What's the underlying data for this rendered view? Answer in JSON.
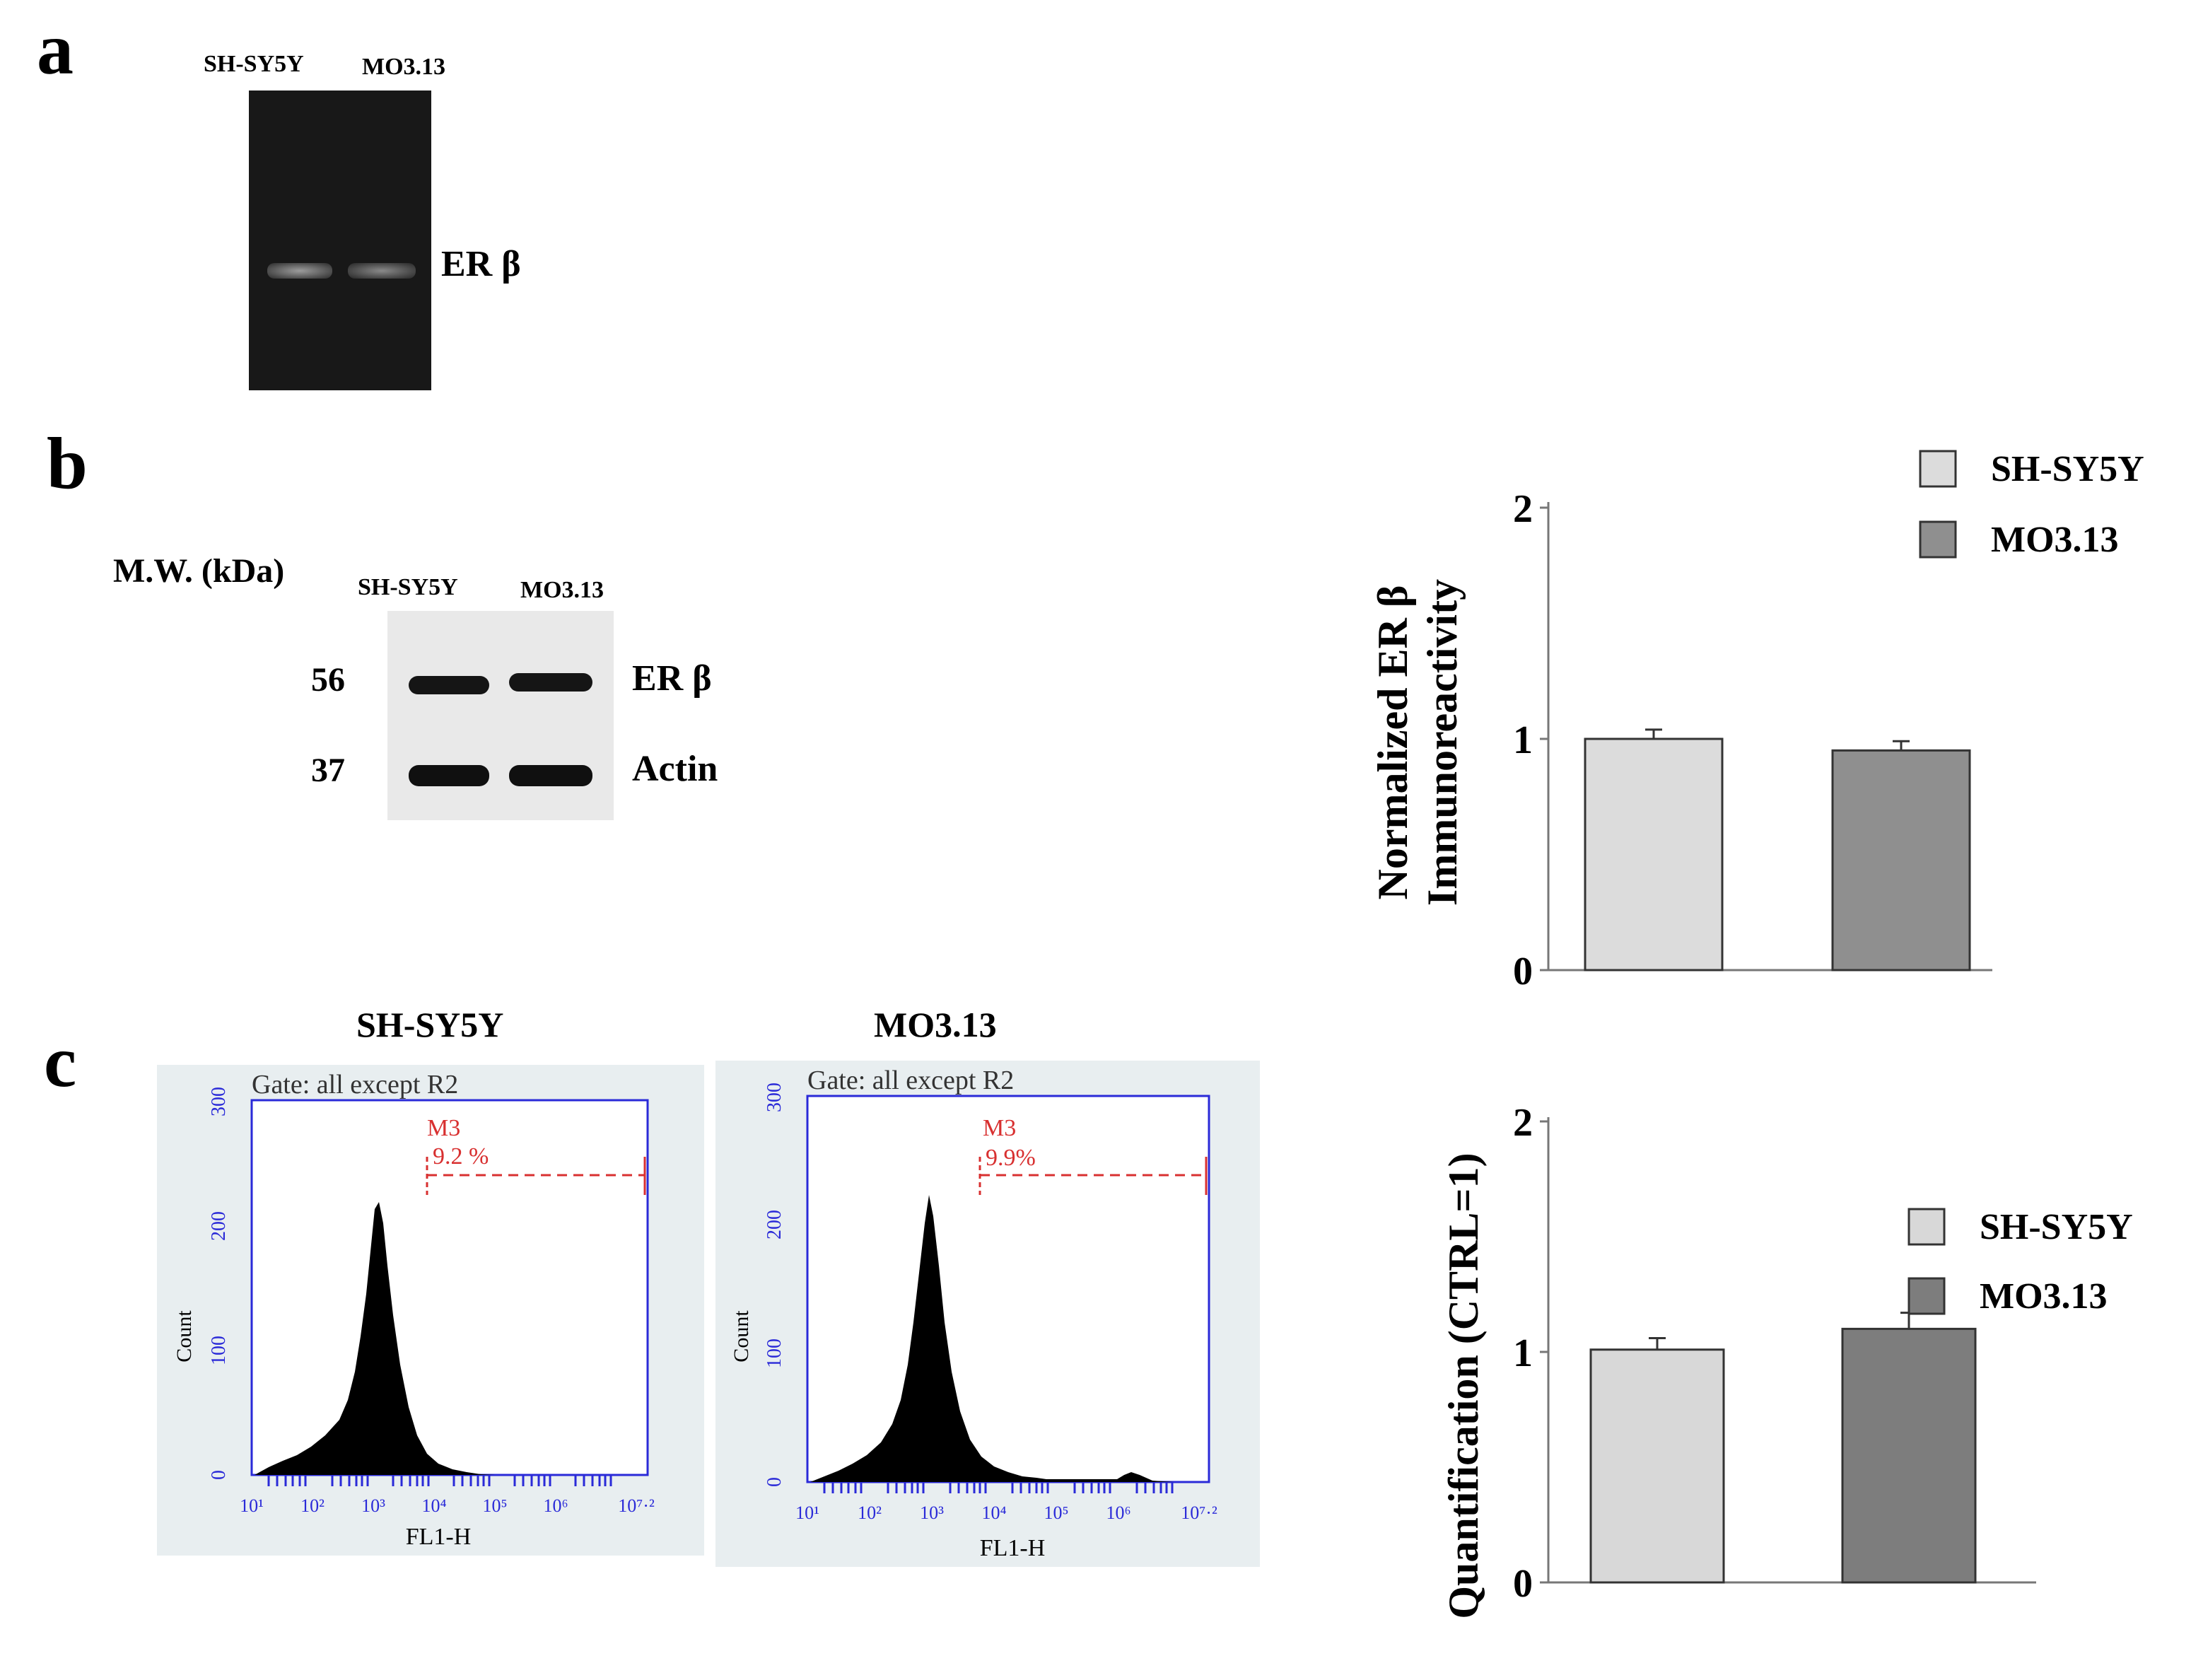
{
  "panel_a": {
    "letter": "a",
    "lane1": "SH-SY5Y",
    "lane2": "MO3.13",
    "band": "ER β"
  },
  "panel_b": {
    "letter": "b",
    "mw_title": "M.W. (kDa)",
    "lane1": "SH-SY5Y",
    "lane2": "MO3.13",
    "rows": [
      {
        "mw": "56",
        "label": "ER β"
      },
      {
        "mw": "37",
        "label": "Actin"
      }
    ]
  },
  "panel_c": {
    "letter": "c",
    "histograms": [
      {
        "title": "SH-SY5Y",
        "gate": "Gate: all except R2",
        "marker": "M3",
        "percent": "9.2 %",
        "ylabel": "Count",
        "xlabel": "FL1-H",
        "yticks": [
          "0",
          "100",
          "200",
          "300"
        ],
        "xticks": [
          "10¹",
          "10²",
          "10³",
          "10⁴",
          "10⁵",
          "10⁶",
          "10⁷·²"
        ]
      },
      {
        "title": "MO3.13",
        "gate": "Gate: all except R2",
        "marker": "M3",
        "percent": "9.9%",
        "ylabel": "Count",
        "xlabel": "FL1-H",
        "yticks": [
          "0",
          "100",
          "200",
          "300"
        ],
        "xticks": [
          "10¹",
          "10²",
          "10³",
          "10⁴",
          "10⁵",
          "10⁶",
          "10⁷·²"
        ]
      }
    ]
  },
  "chart_data": [
    {
      "type": "bar",
      "title": "",
      "ylabel_line1": "Normalized ER β",
      "ylabel_line2": "Immunoreactivity",
      "categories": [
        "SH-SY5Y",
        "MO3.13"
      ],
      "values": [
        1.0,
        0.95
      ],
      "errors": [
        0.04,
        0.04
      ],
      "colors": [
        "#dcdcdc",
        "#8f8f8f"
      ],
      "ylim": [
        0,
        2
      ],
      "yticks": [
        "0",
        "1",
        "2"
      ],
      "legend": [
        "SH-SY5Y",
        "MO3.13"
      ]
    },
    {
      "type": "bar",
      "title": "",
      "ylabel": "Quantification (CTRL=1)",
      "categories": [
        "SH-SY5Y",
        "MO3.13"
      ],
      "values": [
        1.01,
        1.1
      ],
      "errors": [
        0.05,
        0.07
      ],
      "colors": [
        "#d8d8d8",
        "#7d7d7d"
      ],
      "ylim": [
        0,
        2
      ],
      "yticks": [
        "0",
        "1",
        "2"
      ],
      "legend": [
        "SH-SY5Y",
        "MO3.13"
      ]
    }
  ]
}
